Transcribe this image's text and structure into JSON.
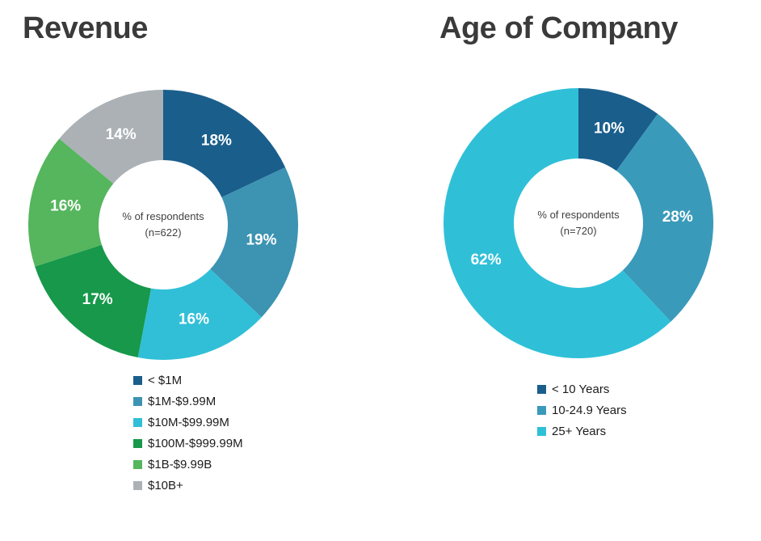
{
  "page": {
    "background": "#ffffff",
    "title_color": "#3a3a3a"
  },
  "chart_data": [
    {
      "type": "pie",
      "donut": true,
      "title": "Revenue",
      "unit": "%",
      "center_label_line1": "% of respondents",
      "center_label_line2": "(n=622)",
      "legend_position": "bottom",
      "categories": [
        "< $1M",
        "$1M-$9.99M",
        "$10M-$99.99M",
        "$100M-$999.99M",
        "$1B-$9.99B",
        "$10B+"
      ],
      "values": [
        18,
        19,
        16,
        17,
        16,
        14
      ],
      "segments": [
        {
          "label": "< $1M",
          "value": 18,
          "color": "#1a5e8c"
        },
        {
          "label": "$1M-$9.99M",
          "value": 19,
          "color": "#3c93b2"
        },
        {
          "label": "$10M-$99.99M",
          "value": 16,
          "color": "#30bfd7"
        },
        {
          "label": "$100M-$999.99M",
          "value": 17,
          "color": "#17984b"
        },
        {
          "label": "$1B-$9.99B",
          "value": 16,
          "color": "#55b65d"
        },
        {
          "label": "$10B+",
          "value": 14,
          "color": "#abb1b5"
        }
      ]
    },
    {
      "type": "pie",
      "donut": true,
      "title": "Age of Company",
      "unit": "%",
      "center_label_line1": "% of respondents",
      "center_label_line2": "(n=720)",
      "legend_position": "bottom",
      "categories": [
        "< 10 Years",
        "10-24.9 Years",
        "25+ Years"
      ],
      "values": [
        10,
        28,
        62
      ],
      "segments": [
        {
          "label": "< 10 Years",
          "value": 10,
          "color": "#1a5e8c"
        },
        {
          "label": "10-24.9 Years",
          "value": 28,
          "color": "#3a9aba"
        },
        {
          "label": "25+ Years",
          "value": 62,
          "color": "#2fc0d8"
        }
      ]
    }
  ]
}
